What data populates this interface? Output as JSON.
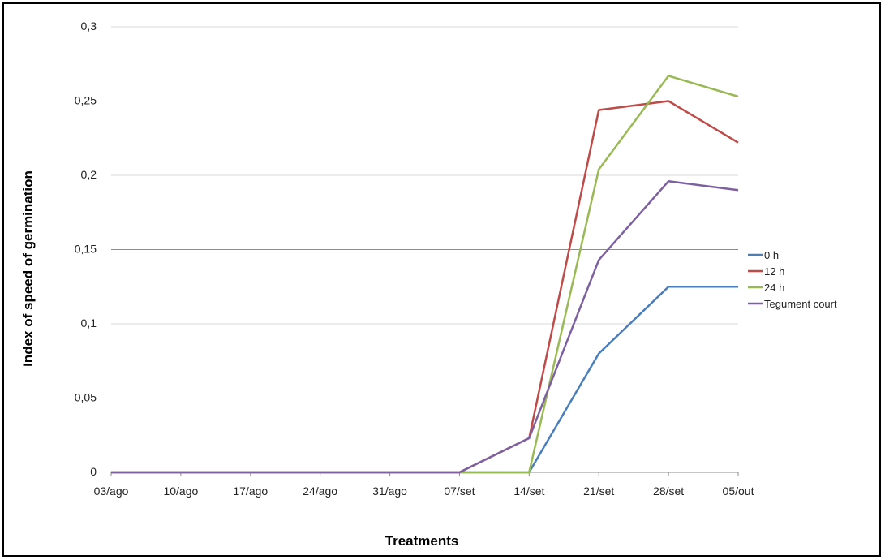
{
  "chart_data": {
    "type": "line",
    "xlabel": "Treatments",
    "ylabel": "Index of speed of germination",
    "categories": [
      "03/ago",
      "10/ago",
      "17/ago",
      "24/ago",
      "31/ago",
      "07/set",
      "14/set",
      "21/set",
      "28/set",
      "05/out"
    ],
    "ylim": [
      0,
      0.3
    ],
    "yticks": [
      "0",
      "0,05",
      "0,1",
      "0,15",
      "0,2",
      "0,25",
      "0,3"
    ],
    "grid": "horizontal",
    "legend_position": "right",
    "series": [
      {
        "name": "0 h",
        "color": "#4a7ebb",
        "values": [
          0,
          0,
          0,
          0,
          0,
          0,
          0,
          0.08,
          0.125,
          0.125
        ]
      },
      {
        "name": "12 h",
        "color": "#be4b48",
        "values": [
          0,
          0,
          0,
          0,
          0,
          0,
          0.023,
          0.244,
          0.25,
          0.222
        ]
      },
      {
        "name": "24 h",
        "color": "#98b954",
        "values": [
          0,
          0,
          0,
          0,
          0,
          0,
          0,
          0.204,
          0.267,
          0.253
        ]
      },
      {
        "name": "Tegument court",
        "color": "#7d60a0",
        "values": [
          0,
          0,
          0,
          0,
          0,
          0,
          0.023,
          0.143,
          0.196,
          0.19
        ]
      }
    ]
  }
}
